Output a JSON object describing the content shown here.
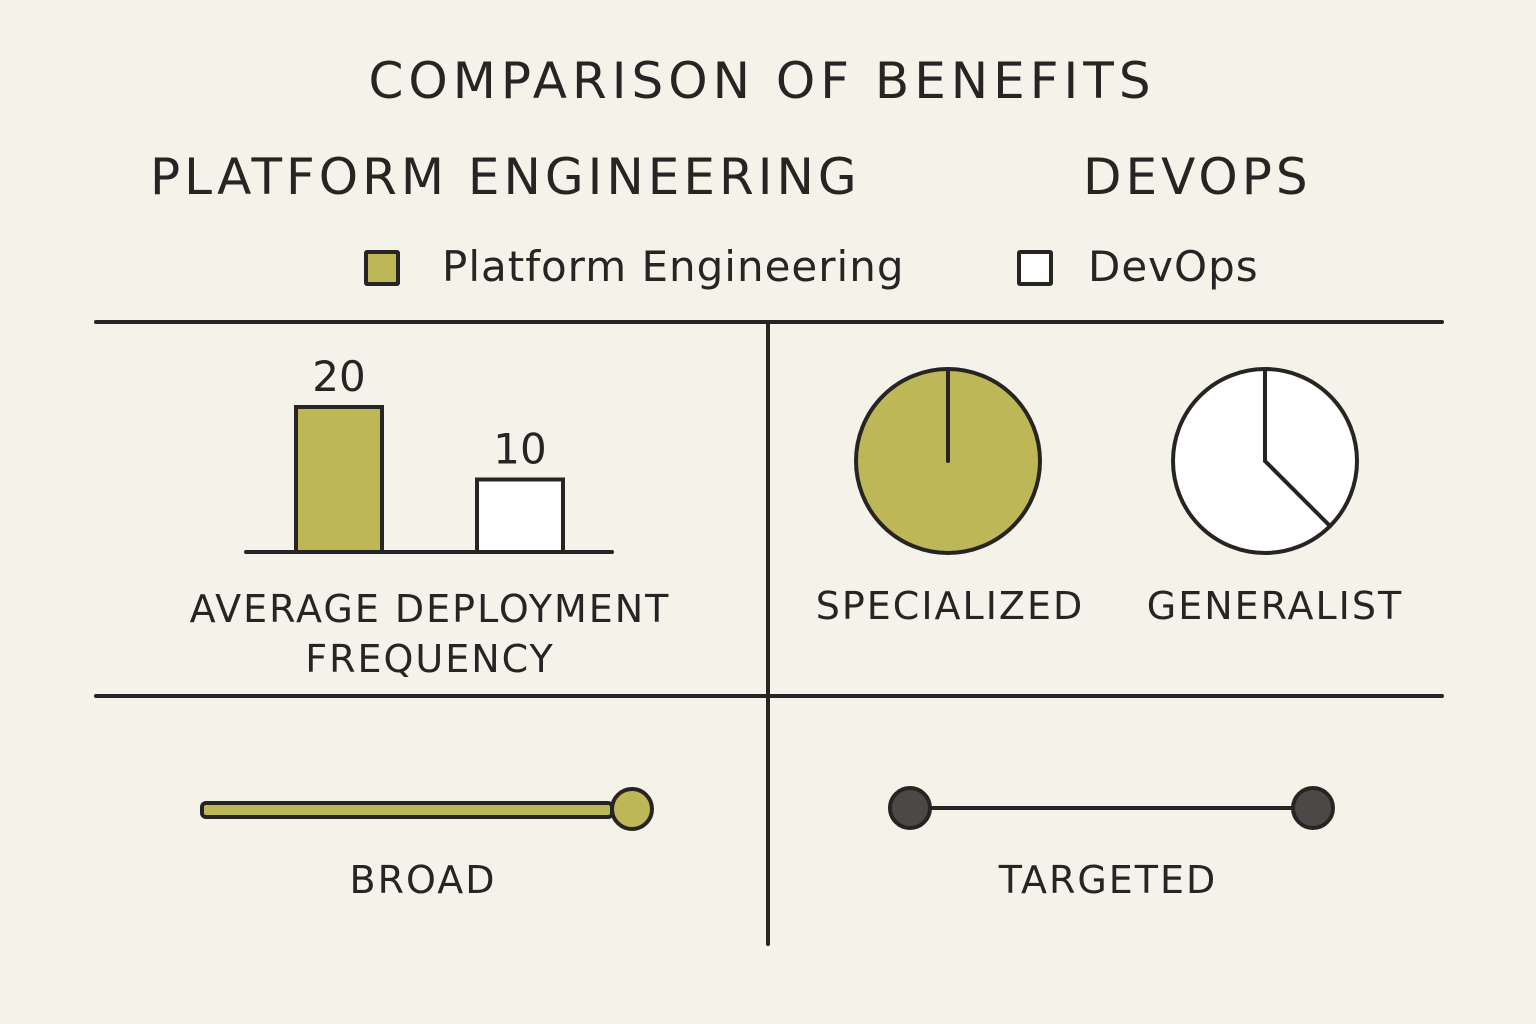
{
  "title": "COMPARISON OF BENEFITS",
  "header": {
    "left": "PLATFORM ENGINEERING",
    "right": "DEVOPS"
  },
  "legend": [
    {
      "label": "Platform Engineering",
      "color": "#bdb757"
    },
    {
      "label": "DevOps",
      "color": "#ffffff"
    }
  ],
  "colors": {
    "platform": "#bdb757",
    "devops": "#ffffff",
    "ink": "#262523",
    "background": "#f5f2ea",
    "dot_dark": "#4a4946"
  },
  "chart_data": [
    {
      "type": "bar",
      "categories": [
        "Platform Engineering",
        "DevOps"
      ],
      "values": [
        20,
        10
      ],
      "data_labels": [
        "20",
        "10"
      ],
      "xlabel": "AVERAGE DEPLOYMENT FREQUENCY",
      "ylim": [
        0,
        20
      ]
    },
    {
      "type": "pie",
      "series": [
        {
          "name": "Platform Engineering",
          "label": "SPECIALIZED",
          "slices": [
            1.0
          ]
        },
        {
          "name": "DevOps",
          "label": "GENERALIST",
          "slices": [
            0.375,
            0.625
          ]
        }
      ]
    },
    {
      "type": "line",
      "series": [
        {
          "name": "Platform Engineering",
          "label": "BROAD"
        },
        {
          "name": "DevOps",
          "label": "TARGETED"
        }
      ]
    }
  ]
}
